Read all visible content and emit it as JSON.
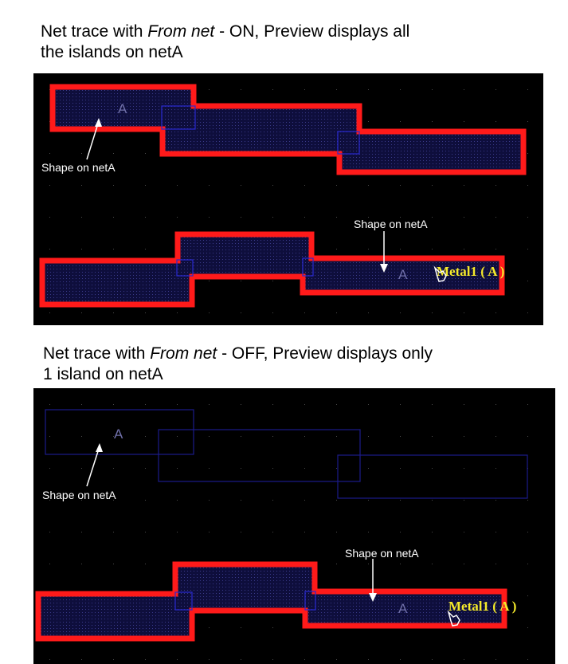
{
  "captions": {
    "top": {
      "prefix": "Net trace with ",
      "italic": "From net",
      "line1_rest": " - ON, Preview displays all",
      "line2": "the islands on netA"
    },
    "bottom": {
      "prefix": "Net trace with ",
      "italic": "From net",
      "line1_rest": " - OFF, Preview displays only",
      "line2": "1 island on netA"
    }
  },
  "panel_top": {
    "shape_label_left": "Shape on netA",
    "shape_label_right": "Shape on netA",
    "net_letter_upper": "A",
    "net_letter_lower": "A",
    "layer_label": "Metal1 ( A )"
  },
  "panel_bottom": {
    "shape_label_left": "Shape on netA",
    "shape_label_right": "Shape on netA",
    "net_letter_upper": "A",
    "net_letter_lower": "A",
    "layer_label": "Metal1 ( A )"
  },
  "colors": {
    "background": "#000000",
    "highlight": "#ff1a1a",
    "shape_fill": "#12124a",
    "shape_outline": "#2a2ad0",
    "layer_label": "#f5ea2a"
  }
}
